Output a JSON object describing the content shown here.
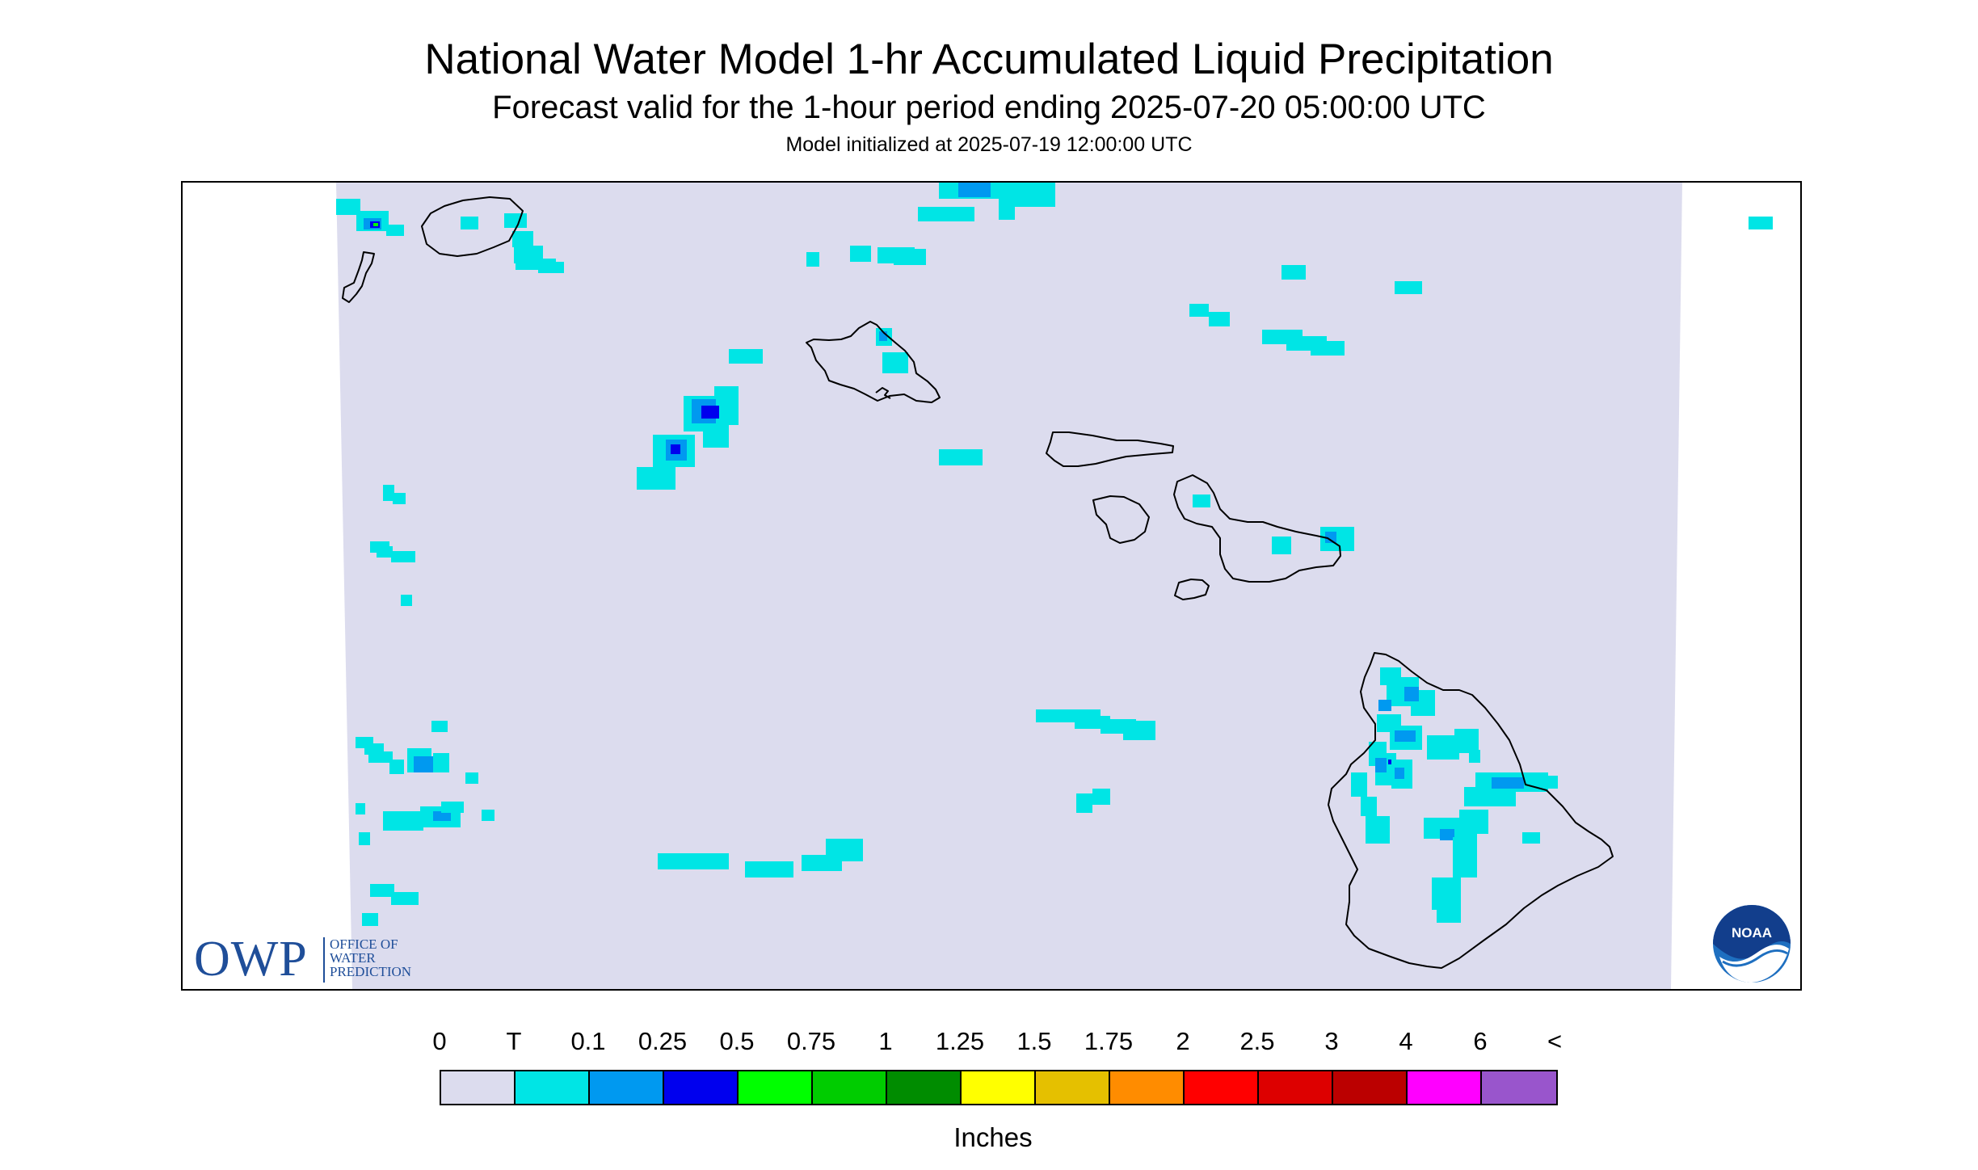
{
  "header": {
    "title": "National Water Model 1-hr Accumulated Liquid Precipitation",
    "subtitle": "Forecast valid for the 1-hour period ending 2025-07-20 05:00:00 UTC",
    "init": "Model initialized at 2025-07-19 12:00:00 UTC"
  },
  "map": {
    "domain_color": "#dcdcee",
    "coast_color": "#000000",
    "islands": [
      "Niihau",
      "Kauai",
      "Oahu",
      "Molokai",
      "Lanai",
      "Maui",
      "Kahoolawe",
      "Hawaii"
    ]
  },
  "logos": {
    "owp_letters": "OWP",
    "owp_line1": "OFFICE OF",
    "owp_line2": "WATER",
    "owp_line3": "PREDICTION",
    "noaa_text": "NOAA"
  },
  "legend": {
    "units": "Inches",
    "labels": [
      "0",
      "T",
      "0.1",
      "0.25",
      "0.5",
      "0.75",
      "1",
      "1.25",
      "1.5",
      "1.75",
      "2",
      "2.5",
      "3",
      "4",
      "6",
      "<"
    ],
    "colors": [
      "#dcdcee",
      "#00e5e5",
      "#0099f0",
      "#0000ee",
      "#00ff00",
      "#00cc00",
      "#008c00",
      "#ffff00",
      "#e5c000",
      "#ff8c00",
      "#ff0000",
      "#dd0000",
      "#bb0000",
      "#ff00ff",
      "#9955cc"
    ]
  }
}
